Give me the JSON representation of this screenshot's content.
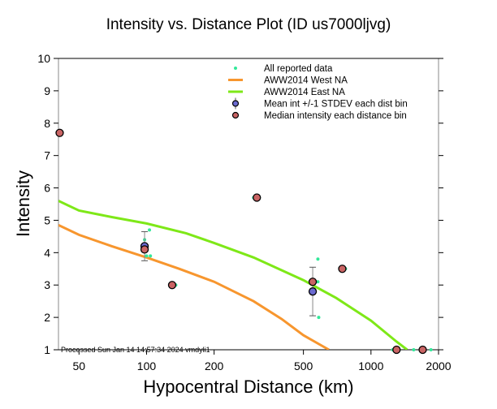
{
  "chart_data": {
    "type": "scatter",
    "title": "Intensity vs. Distance Plot (ID us7000ljvg)",
    "xlabel": "Hypocentral Distance (km)",
    "ylabel": "Intensity",
    "xscale": "log",
    "xlim": [
      40.5,
      2000
    ],
    "ylim": [
      1,
      10
    ],
    "xticks": [
      50,
      100,
      200,
      500,
      1000,
      2000
    ],
    "xtick_labels": [
      "50",
      "100",
      "200",
      "500",
      "1000",
      "2000"
    ],
    "yticks": [
      1,
      2,
      3,
      4,
      5,
      6,
      7,
      8,
      9,
      10
    ],
    "ytick_labels": [
      "1",
      "2",
      "3",
      "4",
      "5",
      "6",
      "7",
      "8",
      "9",
      "10"
    ],
    "grid": false,
    "legend_position": "top-right",
    "footer_note": "Processed Sun Jan 14 14:57:34 2024 vmdyli1",
    "series": [
      {
        "name": "All reported data",
        "kind": "points",
        "color": "#33e89a",
        "points": [
          [
            98,
            4.4
          ],
          [
            100,
            3.9
          ],
          [
            103,
            4.7
          ],
          [
            96,
            4.1
          ],
          [
            104,
            3.9
          ],
          [
            135,
            3.0
          ],
          [
            300,
            5.7
          ],
          [
            580,
            3.8
          ],
          [
            580,
            3.1
          ],
          [
            585,
            2.0
          ],
          [
            770,
            3.5
          ],
          [
            1250,
            1.0
          ],
          [
            1550,
            1.0
          ],
          [
            1850,
            1.0
          ]
        ]
      },
      {
        "name": "AWW2014 West NA",
        "kind": "line",
        "color": "#f7962e",
        "points": [
          [
            40.5,
            4.85
          ],
          [
            50,
            4.55
          ],
          [
            70,
            4.2
          ],
          [
            100,
            3.85
          ],
          [
            140,
            3.5
          ],
          [
            200,
            3.1
          ],
          [
            300,
            2.5
          ],
          [
            400,
            1.95
          ],
          [
            500,
            1.45
          ],
          [
            650,
            1.0
          ]
        ]
      },
      {
        "name": "AWW2014 East NA",
        "kind": "line",
        "color": "#7ee818",
        "points": [
          [
            40.5,
            5.6
          ],
          [
            50,
            5.3
          ],
          [
            70,
            5.1
          ],
          [
            100,
            4.9
          ],
          [
            150,
            4.6
          ],
          [
            200,
            4.3
          ],
          [
            300,
            3.85
          ],
          [
            500,
            3.15
          ],
          [
            700,
            2.6
          ],
          [
            1000,
            1.9
          ],
          [
            1300,
            1.25
          ],
          [
            1450,
            1.0
          ]
        ]
      },
      {
        "name": "Mean int +/-1 STDEV each dist bin",
        "kind": "errorbar",
        "color": "#6a6ad0",
        "points": [
          [
            98,
            4.2,
            0.45
          ],
          [
            550,
            2.8,
            0.75
          ]
        ]
      },
      {
        "name": "Median intensity each distance bin",
        "kind": "points",
        "color": "#c96464",
        "points": [
          [
            41,
            7.7
          ],
          [
            98,
            4.1
          ],
          [
            130,
            3.0
          ],
          [
            310,
            5.7
          ],
          [
            550,
            3.1
          ],
          [
            745,
            3.5
          ],
          [
            1300,
            1.0
          ],
          [
            1700,
            1.0
          ]
        ]
      }
    ]
  }
}
